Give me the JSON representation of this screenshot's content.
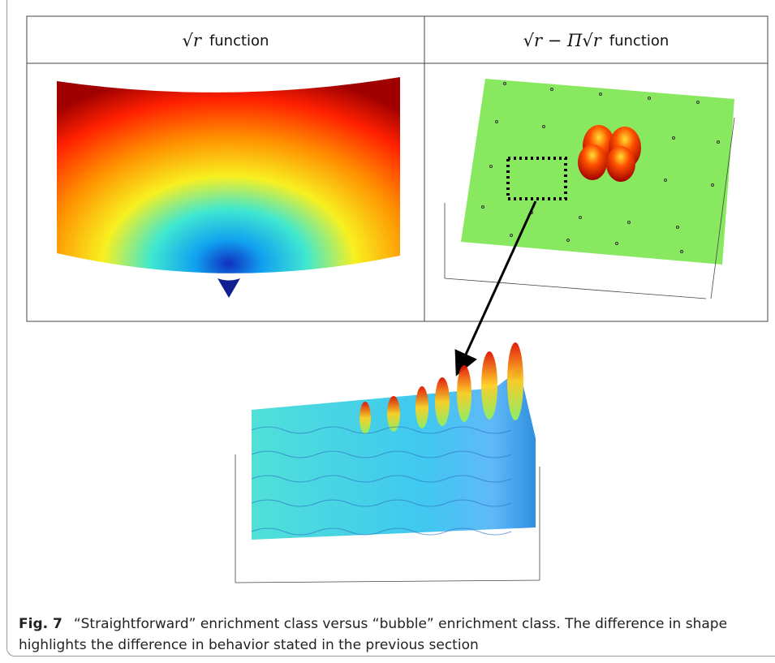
{
  "table": {
    "headers": [
      {
        "math": "√r",
        "label": "function"
      },
      {
        "math": "√r − Π√r",
        "label": "function"
      }
    ]
  },
  "caption": {
    "label": "Fig. 7",
    "text": "“Straightforward” enrichment class versus “bubble” enrichment class. The difference in shape highlights the difference in behavior stated in the previous section"
  }
}
